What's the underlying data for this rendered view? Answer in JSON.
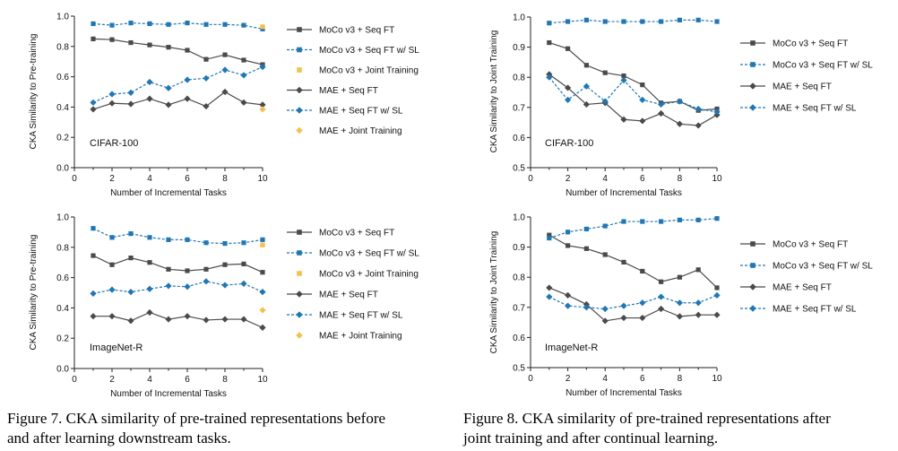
{
  "colors": {
    "dark": "#4a4a4a",
    "blue": "#1f77b4",
    "yellow": "#f2c14e",
    "axis": "#222222"
  },
  "chart_data": [
    {
      "type": "line",
      "subtitle": "CIFAR-100",
      "xlabel": "Number of Incremental Tasks",
      "ylabel": "CKA Similarity to Pre-training",
      "xlim": [
        0,
        10
      ],
      "ylim": [
        0.0,
        1.0
      ],
      "xticks": [
        0,
        2,
        4,
        6,
        8,
        10
      ],
      "yticks": [
        0.0,
        0.2,
        0.4,
        0.6,
        0.8,
        1.0
      ],
      "legend_position": "right",
      "series": [
        {
          "name": "MoCo v3 + Seq FT",
          "style": "solid-square-dark",
          "x": [
            1,
            2,
            3,
            4,
            5,
            6,
            7,
            8,
            9,
            10
          ],
          "y": [
            0.85,
            0.845,
            0.825,
            0.81,
            0.795,
            0.775,
            0.715,
            0.745,
            0.71,
            0.68
          ]
        },
        {
          "name": "MoCo v3 + Seq FT w/ SL",
          "style": "dashed-square-blue",
          "x": [
            1,
            2,
            3,
            4,
            5,
            6,
            7,
            8,
            9,
            10
          ],
          "y": [
            0.95,
            0.94,
            0.955,
            0.95,
            0.945,
            0.955,
            0.945,
            0.945,
            0.94,
            0.915
          ]
        },
        {
          "name": "MoCo v3 + Joint Training",
          "style": "point-square-yellow",
          "x": [
            10
          ],
          "y": [
            0.93
          ]
        },
        {
          "name": "MAE + Seq FT",
          "style": "solid-diamond-dark",
          "x": [
            1,
            2,
            3,
            4,
            5,
            6,
            7,
            8,
            9,
            10
          ],
          "y": [
            0.385,
            0.425,
            0.42,
            0.455,
            0.415,
            0.455,
            0.405,
            0.5,
            0.43,
            0.415
          ]
        },
        {
          "name": "MAE + Seq FT w/ SL",
          "style": "dashed-diamond-blue",
          "x": [
            1,
            2,
            3,
            4,
            5,
            6,
            7,
            8,
            9,
            10
          ],
          "y": [
            0.43,
            0.485,
            0.495,
            0.565,
            0.525,
            0.58,
            0.59,
            0.645,
            0.61,
            0.665
          ]
        },
        {
          "name": "MAE + Joint Training",
          "style": "point-diamond-yellow",
          "x": [
            10
          ],
          "y": [
            0.385
          ]
        }
      ]
    },
    {
      "type": "line",
      "subtitle": "CIFAR-100",
      "xlabel": "Number of Incremental Tasks",
      "ylabel": "CKA Similarity to Joint Training",
      "xlim": [
        0,
        10
      ],
      "ylim": [
        0.5,
        1.0
      ],
      "xticks": [
        0,
        2,
        4,
        6,
        8,
        10
      ],
      "yticks": [
        0.5,
        0.6,
        0.7,
        0.8,
        0.9,
        1.0
      ],
      "legend_position": "right",
      "series": [
        {
          "name": "MoCo v3 + Seq FT",
          "style": "solid-square-dark",
          "x": [
            1,
            2,
            3,
            4,
            5,
            6,
            7,
            8,
            9,
            10
          ],
          "y": [
            0.915,
            0.895,
            0.84,
            0.815,
            0.805,
            0.775,
            0.715,
            0.72,
            0.69,
            0.695
          ]
        },
        {
          "name": "MoCo v3 + Seq FT w/ SL",
          "style": "dashed-square-blue",
          "x": [
            1,
            2,
            3,
            4,
            5,
            6,
            7,
            8,
            9,
            10
          ],
          "y": [
            0.98,
            0.985,
            0.99,
            0.985,
            0.985,
            0.985,
            0.985,
            0.99,
            0.99,
            0.985
          ]
        },
        {
          "name": "MAE + Seq FT",
          "style": "solid-diamond-dark",
          "x": [
            1,
            2,
            3,
            4,
            5,
            6,
            7,
            8,
            9,
            10
          ],
          "y": [
            0.81,
            0.765,
            0.71,
            0.715,
            0.66,
            0.655,
            0.68,
            0.645,
            0.64,
            0.675
          ]
        },
        {
          "name": "MAE + Seq FT w/ SL",
          "style": "dashed-diamond-blue",
          "x": [
            1,
            2,
            3,
            4,
            5,
            6,
            7,
            8,
            9,
            10
          ],
          "y": [
            0.8,
            0.725,
            0.77,
            0.72,
            0.79,
            0.725,
            0.71,
            0.72,
            0.695,
            0.685
          ]
        }
      ]
    },
    {
      "type": "line",
      "subtitle": "ImageNet-R",
      "xlabel": "Number of Incremental Tasks",
      "ylabel": "CKA Similarity to Pre-training",
      "xlim": [
        0,
        10
      ],
      "ylim": [
        0.0,
        1.0
      ],
      "xticks": [
        0,
        2,
        4,
        6,
        8,
        10
      ],
      "yticks": [
        0.0,
        0.2,
        0.4,
        0.6,
        0.8,
        1.0
      ],
      "legend_position": "right",
      "series": [
        {
          "name": "MoCo v3 + Seq FT",
          "style": "solid-square-dark",
          "x": [
            1,
            2,
            3,
            4,
            5,
            6,
            7,
            8,
            9,
            10
          ],
          "y": [
            0.745,
            0.685,
            0.73,
            0.7,
            0.655,
            0.645,
            0.655,
            0.685,
            0.69,
            0.635
          ]
        },
        {
          "name": "MoCo v3 + Seq FT w/ SL",
          "style": "dashed-square-blue",
          "x": [
            1,
            2,
            3,
            4,
            5,
            6,
            7,
            8,
            9,
            10
          ],
          "y": [
            0.925,
            0.865,
            0.89,
            0.865,
            0.85,
            0.85,
            0.83,
            0.825,
            0.83,
            0.85
          ]
        },
        {
          "name": "MoCo v3 + Joint Training",
          "style": "point-square-yellow",
          "x": [
            10
          ],
          "y": [
            0.815
          ]
        },
        {
          "name": "MAE + Seq FT",
          "style": "solid-diamond-dark",
          "x": [
            1,
            2,
            3,
            4,
            5,
            6,
            7,
            8,
            9,
            10
          ],
          "y": [
            0.345,
            0.345,
            0.315,
            0.37,
            0.325,
            0.345,
            0.32,
            0.325,
            0.325,
            0.27
          ]
        },
        {
          "name": "MAE + Seq FT w/ SL",
          "style": "dashed-diamond-blue",
          "x": [
            1,
            2,
            3,
            4,
            5,
            6,
            7,
            8,
            9,
            10
          ],
          "y": [
            0.495,
            0.52,
            0.505,
            0.525,
            0.545,
            0.54,
            0.575,
            0.55,
            0.56,
            0.505
          ]
        },
        {
          "name": "MAE + Joint Training",
          "style": "point-diamond-yellow",
          "x": [
            10
          ],
          "y": [
            0.385
          ]
        }
      ]
    },
    {
      "type": "line",
      "subtitle": "ImageNet-R",
      "xlabel": "Number of Incremental Tasks",
      "ylabel": "CKA Similarity to Joint Training",
      "xlim": [
        0,
        10
      ],
      "ylim": [
        0.5,
        1.0
      ],
      "xticks": [
        0,
        2,
        4,
        6,
        8,
        10
      ],
      "yticks": [
        0.5,
        0.6,
        0.7,
        0.8,
        0.9,
        1.0
      ],
      "legend_position": "right",
      "series": [
        {
          "name": "MoCo v3 + Seq FT",
          "style": "solid-square-dark",
          "x": [
            1,
            2,
            3,
            4,
            5,
            6,
            7,
            8,
            9,
            10
          ],
          "y": [
            0.94,
            0.905,
            0.895,
            0.875,
            0.85,
            0.82,
            0.785,
            0.8,
            0.825,
            0.765
          ]
        },
        {
          "name": "MoCo v3 + Seq FT w/ SL",
          "style": "dashed-square-blue",
          "x": [
            1,
            2,
            3,
            4,
            5,
            6,
            7,
            8,
            9,
            10
          ],
          "y": [
            0.93,
            0.95,
            0.96,
            0.97,
            0.985,
            0.985,
            0.985,
            0.99,
            0.99,
            0.995
          ]
        },
        {
          "name": "MAE + Seq FT",
          "style": "solid-diamond-dark",
          "x": [
            1,
            2,
            3,
            4,
            5,
            6,
            7,
            8,
            9,
            10
          ],
          "y": [
            0.765,
            0.74,
            0.71,
            0.655,
            0.665,
            0.665,
            0.695,
            0.67,
            0.675,
            0.675
          ]
        },
        {
          "name": "MAE + Seq FT w/ SL",
          "style": "dashed-diamond-blue",
          "x": [
            1,
            2,
            3,
            4,
            5,
            6,
            7,
            8,
            9,
            10
          ],
          "y": [
            0.735,
            0.705,
            0.7,
            0.695,
            0.705,
            0.715,
            0.735,
            0.715,
            0.715,
            0.74
          ]
        }
      ]
    }
  ],
  "captions": {
    "fig7": [
      "Figure 7. CKA similarity of pre-trained representations before",
      "and after learning downstream tasks."
    ],
    "fig8": [
      "Figure 8. CKA similarity of pre-trained representations after",
      "joint training and after continual learning."
    ]
  }
}
